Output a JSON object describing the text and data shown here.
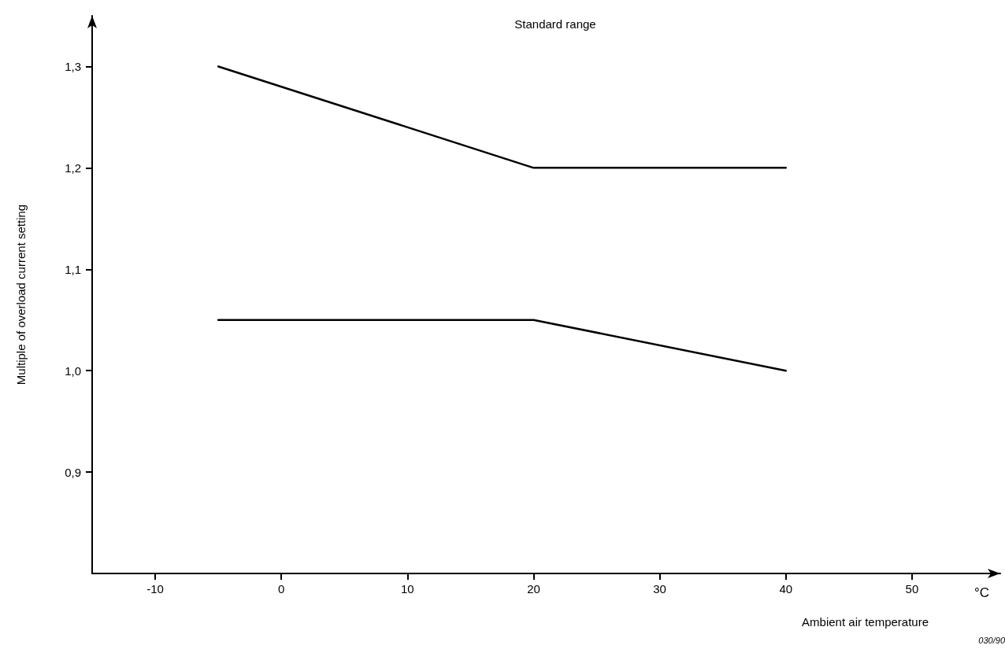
{
  "chart_data": {
    "type": "line",
    "title": "Standard range",
    "xlabel": "Ambient air temperature",
    "ylabel": "Multiple of overload current setting",
    "annotations": [
      "°C",
      "030/90"
    ],
    "series": [
      {
        "color": "#000000",
        "x": [
          -5,
          20,
          40
        ],
        "values": [
          1.3,
          1.2,
          1.2
        ]
      },
      {
        "color": "#000000",
        "x": [
          -5,
          20,
          40
        ],
        "values": [
          1.05,
          1.05,
          1.0
        ]
      }
    ],
    "xlim": [
      -15,
      57
    ],
    "xticks": [
      -10,
      0,
      10,
      20,
      30,
      40,
      50
    ],
    "ylim": [
      0.8,
      1.35
    ],
    "yticks": [
      {
        "value": 0.9,
        "label": "0,9"
      },
      {
        "value": 1.0,
        "label": "1,0"
      },
      {
        "value": 1.1,
        "label": "1,1"
      },
      {
        "value": 1.2,
        "label": "1,2"
      },
      {
        "value": 1.3,
        "label": "1,3"
      }
    ],
    "grid": false,
    "marker": "none",
    "line_style": "solid"
  }
}
